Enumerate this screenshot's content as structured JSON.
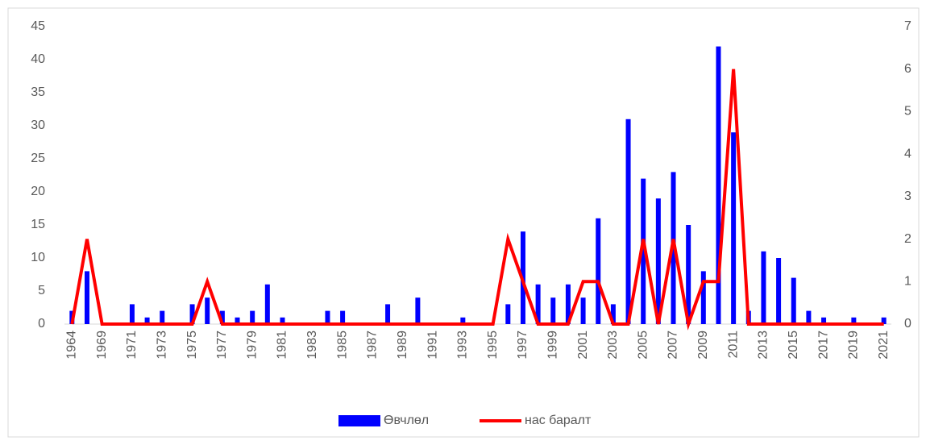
{
  "chart_data": {
    "type": "bar-line",
    "categories": [
      "1964",
      null,
      "1969",
      null,
      "1971",
      null,
      "1973",
      null,
      "1975",
      null,
      "1977",
      null,
      "1979",
      null,
      "1981",
      null,
      "1983",
      null,
      "1985",
      null,
      "1987",
      null,
      "1989",
      null,
      "1991",
      null,
      "1993",
      null,
      "1995",
      null,
      "1997",
      null,
      "1999",
      null,
      "2001",
      null,
      "2003",
      null,
      "2005",
      null,
      "2007",
      null,
      "2009",
      null,
      "2011",
      null,
      "2013",
      null,
      "2015",
      null,
      "2017",
      null,
      "2019",
      null,
      "2021"
    ],
    "series": [
      {
        "name": "Өвчлөл",
        "type": "bar",
        "color": "#0000ff",
        "values": [
          2,
          8,
          0,
          0,
          3,
          1,
          2,
          0,
          3,
          4,
          2,
          1,
          2,
          6,
          1,
          0,
          0,
          2,
          2,
          0,
          0,
          3,
          0,
          4,
          0,
          0,
          1,
          0,
          0,
          3,
          14,
          6,
          4,
          6,
          4,
          16,
          3,
          31,
          22,
          19,
          23,
          15,
          8,
          42,
          29,
          2,
          11,
          10,
          7,
          2,
          1,
          0,
          1,
          0,
          1
        ]
      },
      {
        "name": "нас баралт",
        "type": "line",
        "axis": "y2",
        "color": "#ff0000",
        "values": [
          0,
          2,
          0,
          0,
          0,
          0,
          0,
          0,
          0,
          1,
          0,
          0,
          0,
          0,
          0,
          0,
          0,
          0,
          0,
          0,
          0,
          0,
          0,
          0,
          0,
          0,
          0,
          0,
          0,
          2,
          1,
          0,
          0,
          0,
          1,
          1,
          0,
          0,
          2,
          0,
          2,
          0,
          1,
          1,
          6,
          0,
          0,
          0,
          0,
          0,
          0,
          0,
          0,
          0,
          0
        ]
      }
    ],
    "ylim": [
      0,
      45
    ],
    "yticks": [
      0,
      5,
      10,
      15,
      20,
      25,
      30,
      35,
      40,
      45
    ],
    "y2lim": [
      0,
      7
    ],
    "y2ticks": [
      0,
      1,
      2,
      3,
      4,
      5,
      6,
      7
    ],
    "legend": "bottom"
  }
}
